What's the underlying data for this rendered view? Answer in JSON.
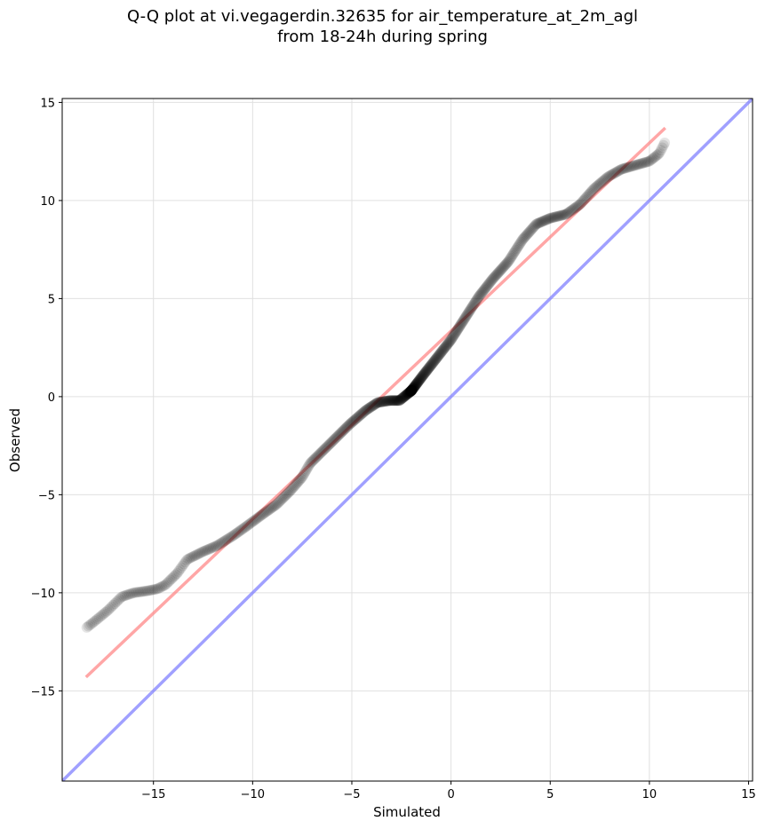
{
  "chart_data": {
    "type": "scatter",
    "title_line1": "Q-Q plot at vi.vegagerdin.32635 for air_temperature_at_2m_agl",
    "title_line2": "from 18-24h during spring",
    "xlabel": "Simulated",
    "ylabel": "Observed",
    "xlim": [
      -19.6,
      15.2
    ],
    "ylim": [
      -19.6,
      15.2
    ],
    "grid": true,
    "x_ticks": [
      -15,
      -10,
      -5,
      0,
      5,
      10,
      15
    ],
    "y_ticks": [
      -15,
      -10,
      -5,
      0,
      5,
      10,
      15
    ],
    "x_tick_labels": [
      "−15",
      "−10",
      "−5",
      "0",
      "5",
      "10",
      "15"
    ],
    "y_tick_labels": [
      "−15",
      "−10",
      "−5",
      "0",
      "5",
      "10",
      "15"
    ],
    "colors": {
      "points": "#000000",
      "fit_line": "#ff8080",
      "identity_line": "#8080ff",
      "grid": "#e0e0e0"
    },
    "fit_line": {
      "x": [
        -18.4,
        10.8
      ],
      "y": [
        -14.3,
        13.7
      ]
    },
    "identity_line": {
      "x": [
        -19.6,
        15.2
      ],
      "y": [
        -19.6,
        15.2
      ]
    },
    "quantile_curve": {
      "x": [
        -18.4,
        -17.9,
        -17.3,
        -16.6,
        -16.0,
        -15.3,
        -14.8,
        -14.4,
        -13.8,
        -13.3,
        -12.5,
        -11.8,
        -11.0,
        -10.3,
        -9.5,
        -8.8,
        -8.1,
        -7.5,
        -7.1,
        -6.4,
        -5.8,
        -5.1,
        -4.3,
        -3.7,
        -3.1,
        -2.6,
        -2.0,
        -1.4,
        -0.7,
        0.0,
        0.7,
        1.4,
        2.1,
        2.9,
        3.6,
        4.3,
        5.0,
        5.8,
        6.5,
        7.2,
        7.9,
        8.6,
        9.3,
        10.0,
        10.5,
        10.8
      ],
      "y": [
        -11.8,
        -11.4,
        -10.9,
        -10.2,
        -10.0,
        -9.9,
        -9.8,
        -9.6,
        -9.0,
        -8.3,
        -7.9,
        -7.6,
        -7.1,
        -6.6,
        -6.0,
        -5.5,
        -4.8,
        -4.1,
        -3.4,
        -2.7,
        -2.1,
        -1.4,
        -0.7,
        -0.3,
        -0.2,
        -0.2,
        0.3,
        1.1,
        2.0,
        2.9,
        4.0,
        5.1,
        6.0,
        6.9,
        8.0,
        8.8,
        9.1,
        9.3,
        9.8,
        10.6,
        11.2,
        11.6,
        11.8,
        12.0,
        12.4,
        13.0
      ]
    }
  }
}
